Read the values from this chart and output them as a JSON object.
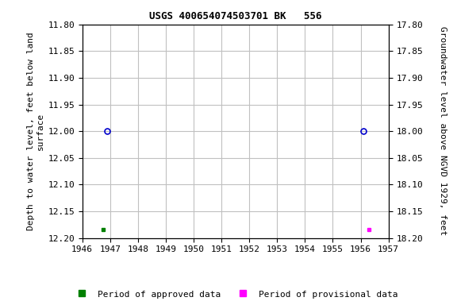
{
  "title": "USGS 400654074503701 BK   556",
  "ylabel_left": "Depth to water level, feet below land\nsurface",
  "ylabel_right": "Groundwater level above NGVD 1929, feet",
  "ylim_left": [
    11.8,
    12.2
  ],
  "ylim_right_top": 18.2,
  "ylim_right_bottom": 17.8,
  "xlim": [
    1946,
    1957
  ],
  "xticks": [
    1946,
    1947,
    1948,
    1949,
    1950,
    1951,
    1952,
    1953,
    1954,
    1955,
    1956,
    1957
  ],
  "yticks_left": [
    11.8,
    11.85,
    11.9,
    11.95,
    12.0,
    12.05,
    12.1,
    12.15,
    12.2
  ],
  "yticks_right": [
    18.2,
    18.15,
    18.1,
    18.05,
    18.0,
    17.95,
    17.9,
    17.85,
    17.8
  ],
  "circle_points_x": [
    1946.9,
    1956.1
  ],
  "circle_points_y": [
    12.0,
    12.0
  ],
  "circle_color": "#0000cc",
  "green_square_x": [
    1946.75
  ],
  "green_square_y": [
    12.185
  ],
  "green_color": "#008000",
  "magenta_square_x": [
    1956.3
  ],
  "magenta_square_y": [
    12.185
  ],
  "magenta_color": "#ff00ff",
  "background_color": "#ffffff",
  "grid_color": "#c0c0c0",
  "legend_approved": "Period of approved data",
  "legend_provisional": "Period of provisional data",
  "title_fontsize": 9,
  "axis_label_fontsize": 8,
  "tick_fontsize": 8,
  "legend_fontsize": 8
}
